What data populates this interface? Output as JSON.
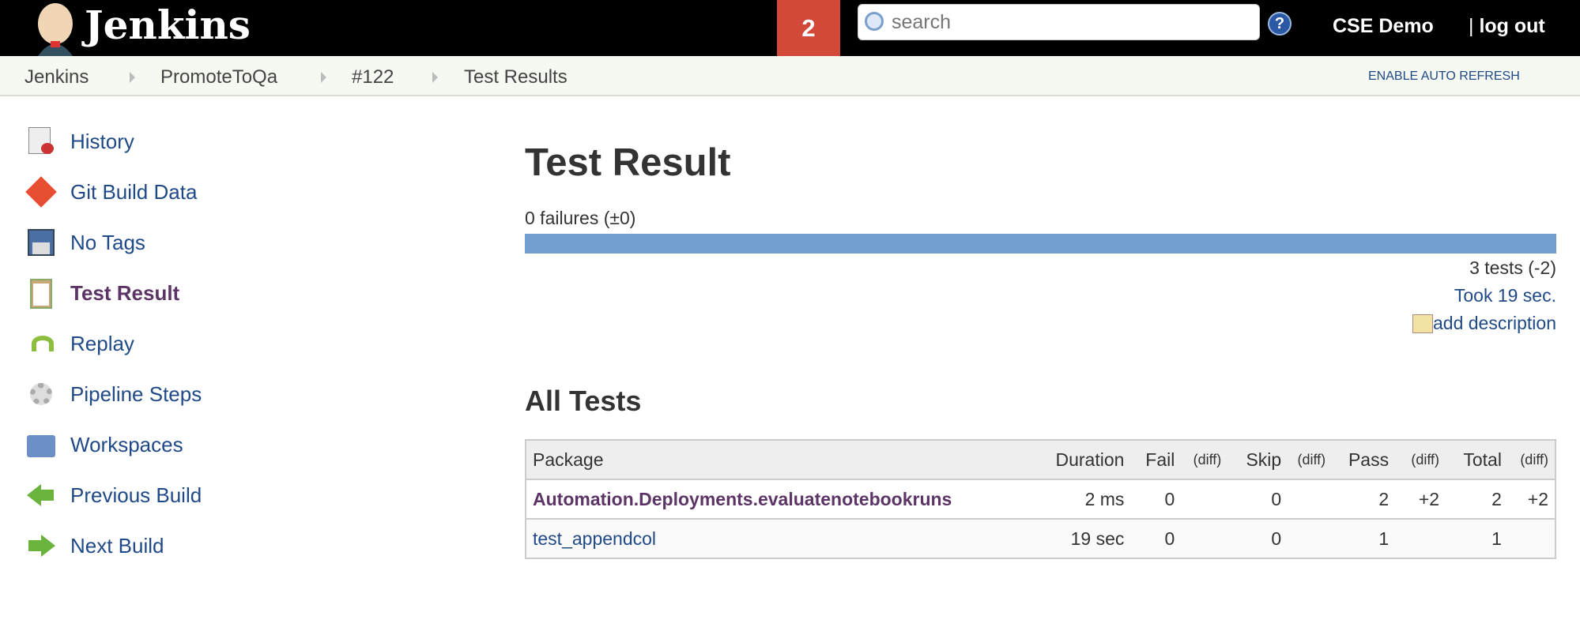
{
  "header": {
    "brand": "Jenkins",
    "badge_count": "2",
    "search_placeholder": "search",
    "help": "?",
    "user": "CSE Demo",
    "logout": "log out"
  },
  "breadcrumb": {
    "items": [
      "Jenkins",
      "PromoteToQa",
      "#122",
      "Test Results"
    ],
    "auto_refresh": "ENABLE AUTO REFRESH"
  },
  "sidebar": {
    "items": [
      {
        "label": "History",
        "icon": "history-icon"
      },
      {
        "label": "Git Build Data",
        "icon": "git-icon"
      },
      {
        "label": "No Tags",
        "icon": "save-icon"
      },
      {
        "label": "Test Result",
        "icon": "clipboard-icon",
        "current": true
      },
      {
        "label": "Replay",
        "icon": "replay-icon"
      },
      {
        "label": "Pipeline Steps",
        "icon": "gear-icon"
      },
      {
        "label": "Workspaces",
        "icon": "folder-icon"
      },
      {
        "label": "Previous Build",
        "icon": "arrow-left-icon"
      },
      {
        "label": "Next Build",
        "icon": "arrow-right-icon"
      }
    ]
  },
  "main": {
    "title": "Test Result",
    "failures": "0 failures (±0)",
    "pass_fraction": 1.0,
    "tests": "3 tests (-2)",
    "took": "Took 19 sec.",
    "add_description": "add description",
    "all_tests": "All Tests",
    "table": {
      "headers": [
        "Package",
        "Duration",
        "Fail",
        "(diff)",
        "Skip",
        "(diff)",
        "Pass",
        "(diff)",
        "Total",
        "(diff)"
      ],
      "rows": [
        [
          "Automation.Deployments.evaluatenotebookruns",
          "2 ms",
          "0",
          "",
          "0",
          "",
          "2",
          "+2",
          "2",
          "+2"
        ],
        [
          "test_appendcol",
          "19 sec",
          "0",
          "",
          "0",
          "",
          "1",
          "",
          "1",
          ""
        ]
      ]
    }
  },
  "colors": {
    "bar": "#729fcf",
    "badge": "#d24939",
    "link": "#204a87",
    "visited": "#5c3566"
  }
}
